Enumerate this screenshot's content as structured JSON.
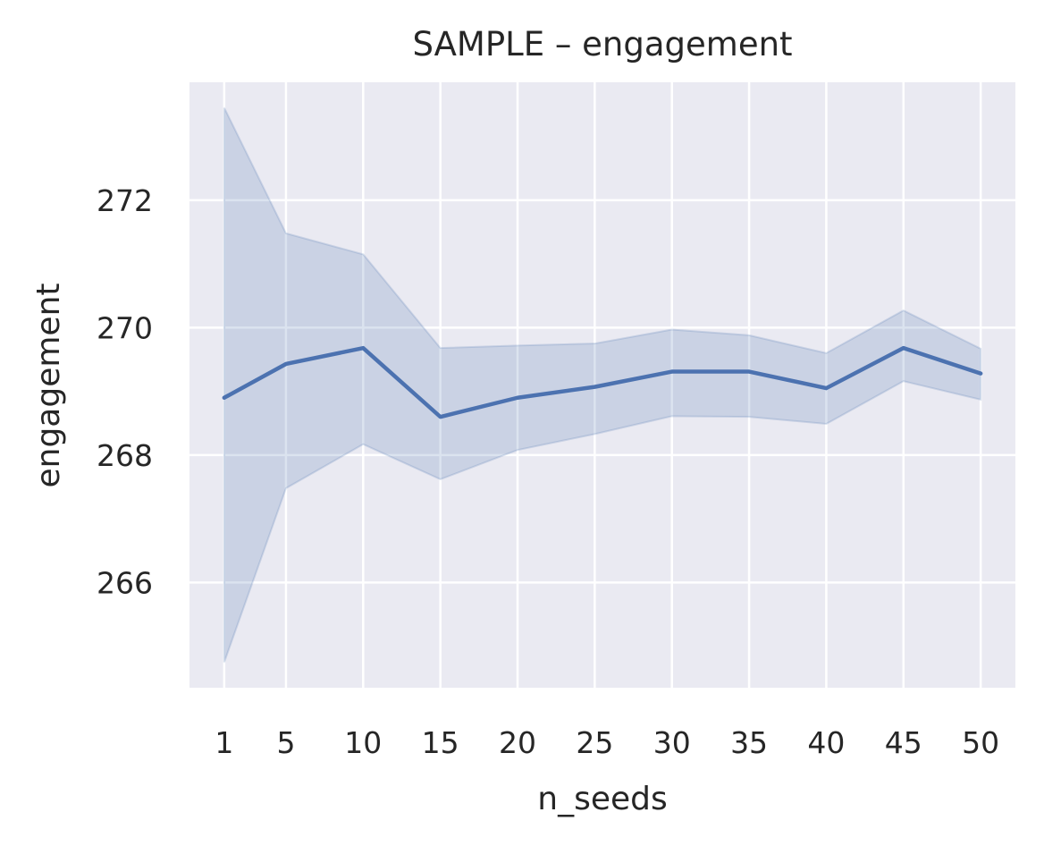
{
  "chart_data": {
    "type": "line",
    "title": "SAMPLE – engagement",
    "xlabel": "n_seeds",
    "ylabel": "engagement",
    "x": [
      1,
      5,
      10,
      15,
      20,
      25,
      30,
      35,
      40,
      45,
      50
    ],
    "xticks": [
      "1",
      "5",
      "10",
      "15",
      "20",
      "25",
      "30",
      "35",
      "40",
      "45",
      "50"
    ],
    "yticks": [
      266,
      268,
      270,
      272
    ],
    "ylim": [
      264.35,
      273.85
    ],
    "xlim": [
      -1.25,
      52.25
    ],
    "grid": true,
    "series": [
      {
        "values": [
          268.9,
          269.43,
          269.68,
          268.6,
          268.9,
          269.07,
          269.31,
          269.31,
          269.05,
          269.68,
          269.28
        ],
        "ci_upper": [
          273.45,
          271.48,
          271.15,
          269.68,
          269.72,
          269.75,
          269.97,
          269.88,
          269.6,
          270.27,
          269.67
        ],
        "ci_lower": [
          264.75,
          267.48,
          268.17,
          267.62,
          268.08,
          268.33,
          268.61,
          268.6,
          268.49,
          269.16,
          268.87
        ],
        "color": "#4c72b0",
        "band_color": "#4c72b0"
      }
    ],
    "background_color": "#eaeaf2"
  }
}
